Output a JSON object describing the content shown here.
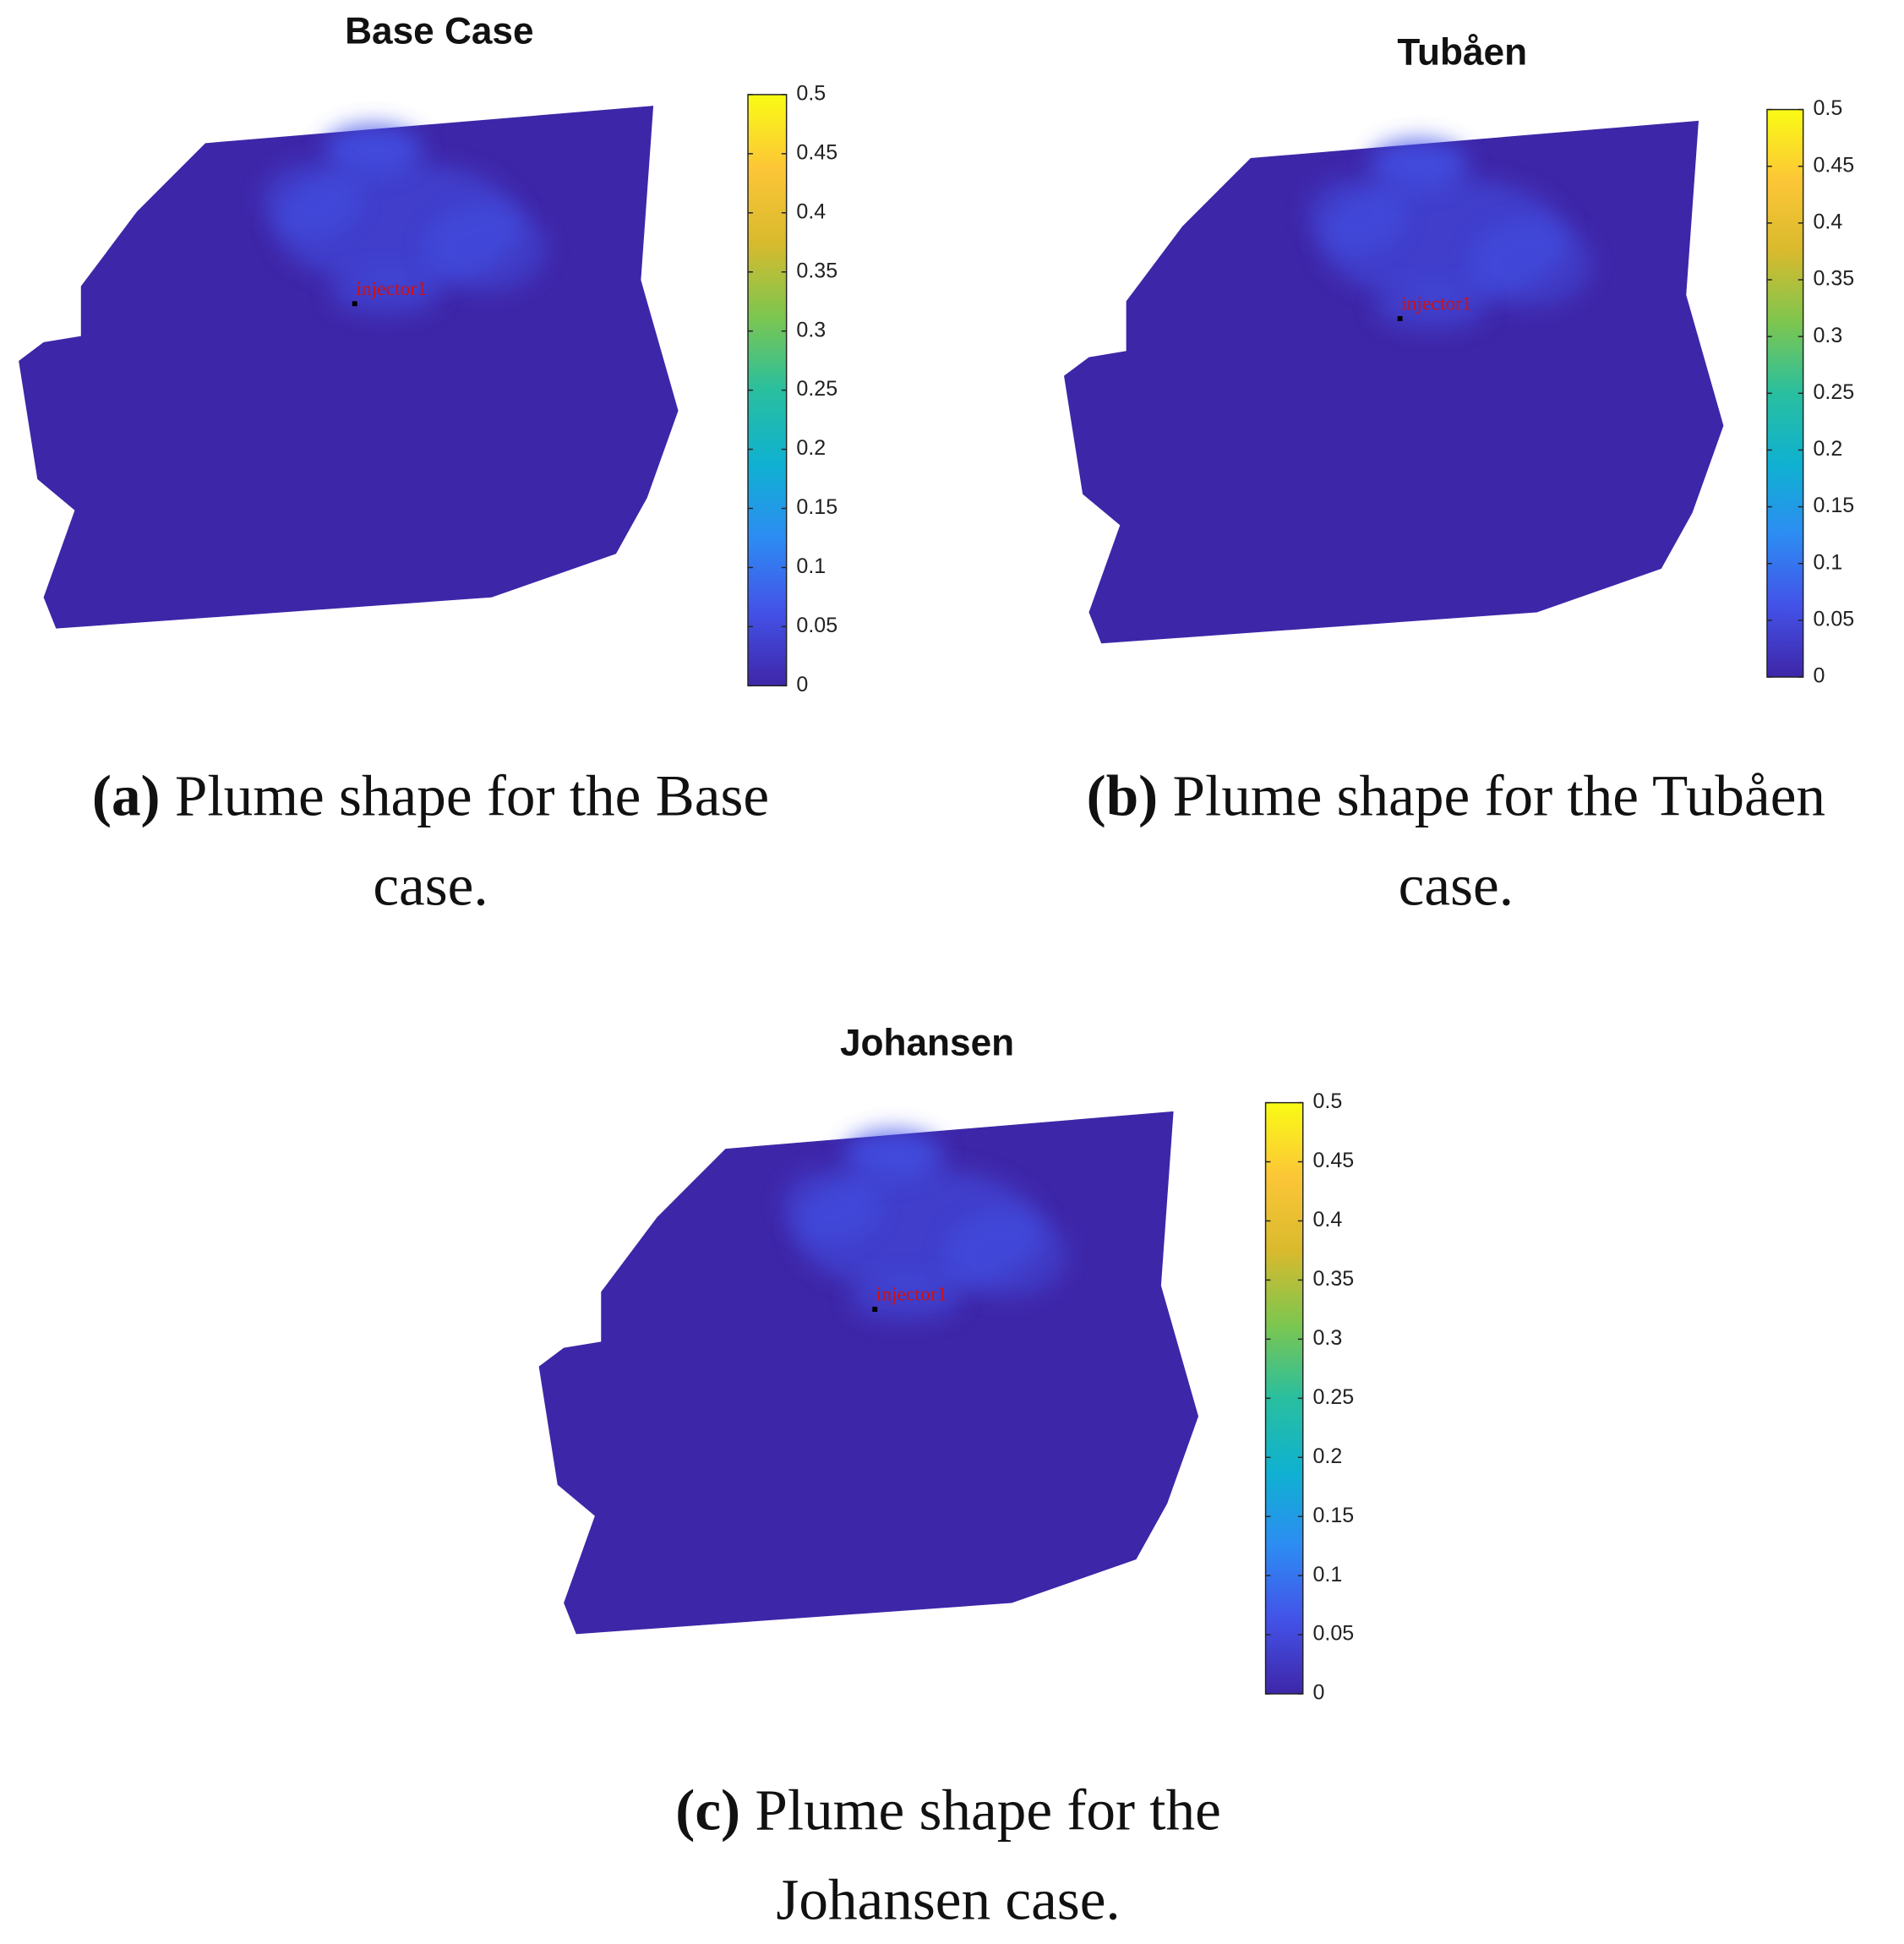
{
  "chart_data": [
    {
      "type": "heatmap",
      "title": "Base Case",
      "caption_label": "(a)",
      "caption_lines": [
        "Plume shape for the Base",
        "case."
      ],
      "annotation": "injector1",
      "clim": [
        0,
        0.5
      ],
      "cticks": [
        0,
        0.05,
        0.1,
        0.15,
        0.2,
        0.25,
        0.3,
        0.35,
        0.4,
        0.45,
        0.5
      ],
      "colormap": [
        "#3e26a8",
        "#4352e8",
        "#2d8cf3",
        "#0fb1d1",
        "#29bf9f",
        "#7dc64f",
        "#d9ba2d",
        "#fcc637",
        "#f9fb15"
      ]
    },
    {
      "type": "heatmap",
      "title": "Tubåen",
      "caption_label": "(b)",
      "caption_lines": [
        "Plume shape for the Tubåen",
        "case."
      ],
      "annotation": "injector1",
      "clim": [
        0,
        0.5
      ],
      "cticks": [
        0,
        0.05,
        0.1,
        0.15,
        0.2,
        0.25,
        0.3,
        0.35,
        0.4,
        0.45,
        0.5
      ],
      "colormap": [
        "#3e26a8",
        "#4352e8",
        "#2d8cf3",
        "#0fb1d1",
        "#29bf9f",
        "#7dc64f",
        "#d9ba2d",
        "#fcc637",
        "#f9fb15"
      ]
    },
    {
      "type": "heatmap",
      "title": "Johansen",
      "caption_label": "(c)",
      "caption_lines": [
        "Plume shape for the",
        "Johansen case."
      ],
      "annotation": "injector1",
      "clim": [
        0,
        0.5
      ],
      "cticks": [
        0,
        0.05,
        0.1,
        0.15,
        0.2,
        0.25,
        0.3,
        0.35,
        0.4,
        0.45,
        0.5
      ],
      "colormap": [
        "#3e26a8",
        "#4352e8",
        "#2d8cf3",
        "#0fb1d1",
        "#29bf9f",
        "#7dc64f",
        "#d9ba2d",
        "#fcc637",
        "#f9fb15"
      ]
    }
  ]
}
